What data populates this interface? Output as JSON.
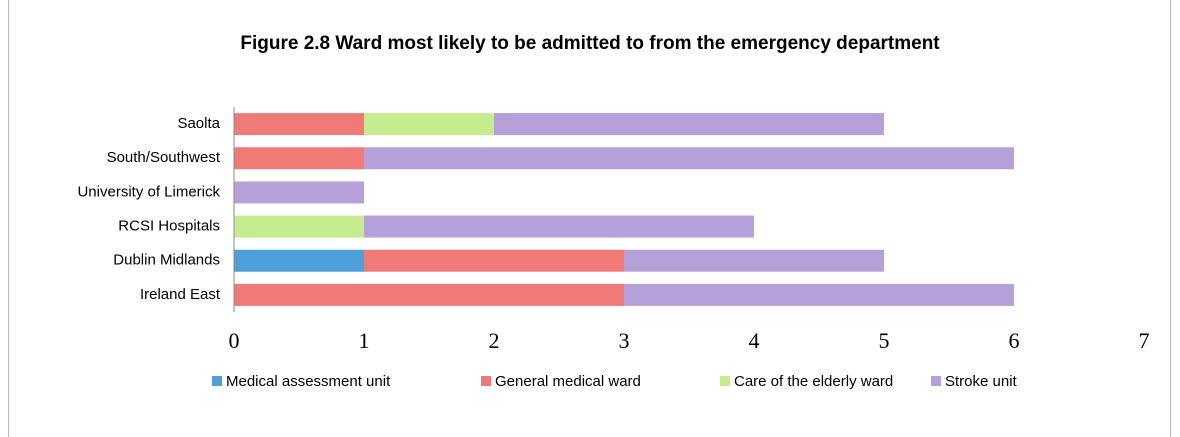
{
  "chart_data": {
    "type": "stacked_barh",
    "title": "Figure 2.8 Ward most likely to be admitted to from the emergency department",
    "categories": [
      "Saolta",
      "South/Southwest",
      "University of Limerick",
      "RCSI Hospitals",
      "Dublin Midlands",
      "Ireland East"
    ],
    "series": [
      {
        "name": "Medical  assessment unit",
        "color": "#4f9fdb",
        "values": [
          0,
          0,
          0,
          0,
          1,
          0
        ]
      },
      {
        "name": "General medical ward",
        "color": "#f07a78",
        "values": [
          1,
          1,
          0,
          0,
          2,
          3
        ]
      },
      {
        "name": "Care of the elderly ward",
        "color": "#c6ec8f",
        "values": [
          1,
          0,
          0,
          1,
          0,
          0
        ]
      },
      {
        "name": "Stroke unit",
        "color": "#b5a0d9",
        "values": [
          3,
          5,
          1,
          3,
          2,
          3
        ]
      }
    ],
    "xlim": [
      0,
      7
    ],
    "xticks": [
      0,
      1,
      2,
      3,
      4,
      5,
      6,
      7
    ],
    "legend": "bottom"
  }
}
